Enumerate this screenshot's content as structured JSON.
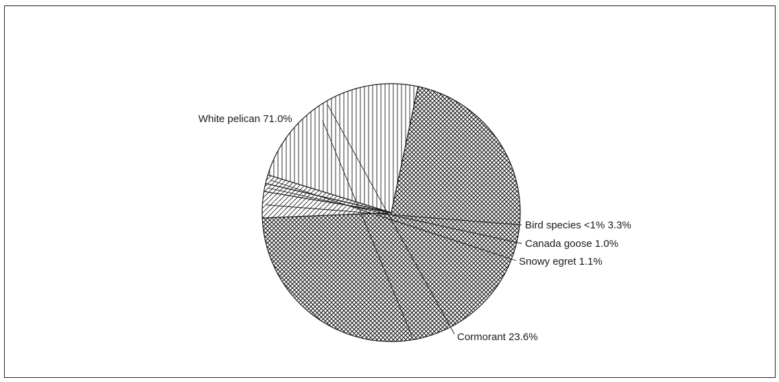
{
  "chart_data": {
    "type": "pie",
    "title": "",
    "slices": [
      {
        "label": "White pelican",
        "value": 71.0,
        "display": "71.0%",
        "pattern": "crosshatch"
      },
      {
        "label": "Bird species <1%",
        "value": 3.3,
        "display": "3.3%",
        "pattern": "diagonal"
      },
      {
        "label": "Canada goose",
        "value": 1.0,
        "display": "1.0%",
        "pattern": "diagonal"
      },
      {
        "label": "Snowy egret",
        "value": 1.1,
        "display": "1.1%",
        "pattern": "diagonal"
      },
      {
        "label": "Cormorant",
        "value": 23.6,
        "display": "23.6%",
        "pattern": "vertical"
      }
    ],
    "legend": "none",
    "colors": {
      "stroke": "#1a1a1a",
      "background": "#ffffff"
    }
  }
}
